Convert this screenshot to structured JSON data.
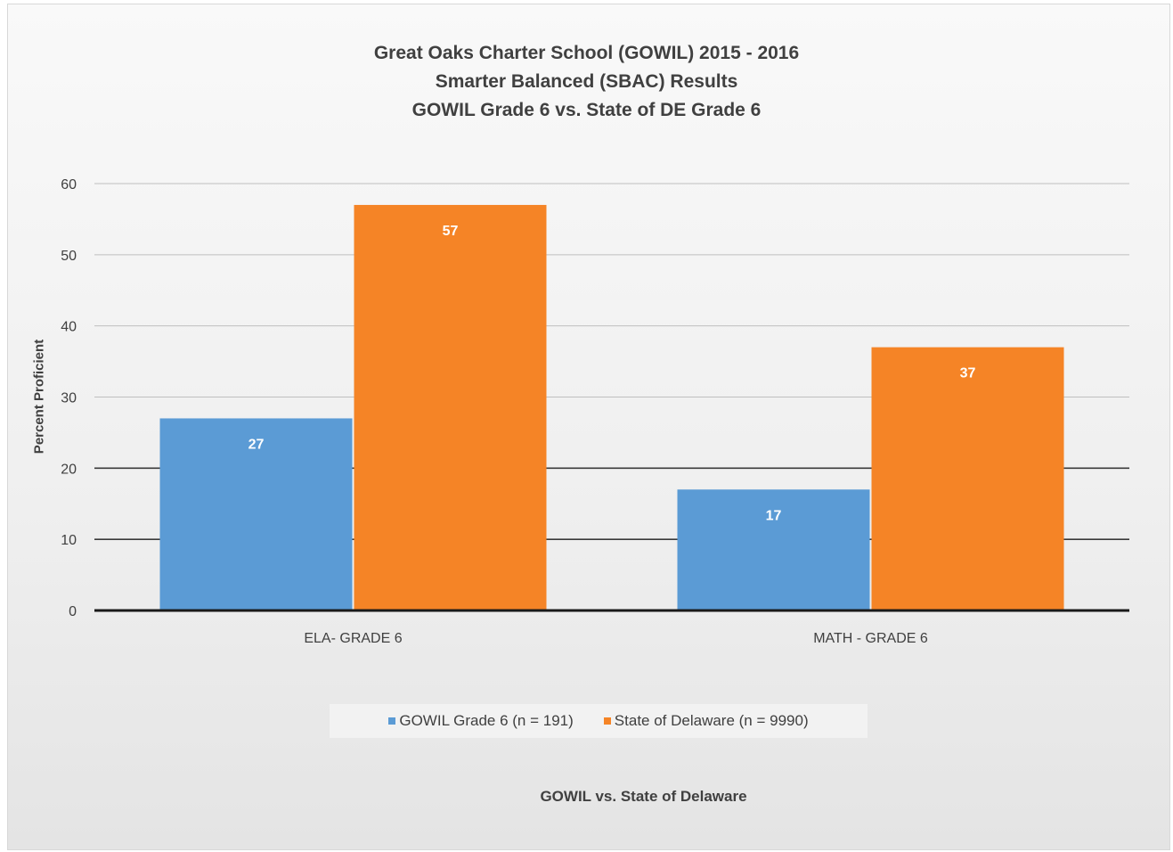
{
  "chart_data": {
    "type": "bar",
    "title_lines": [
      "Great Oaks Charter School (GOWIL) 2015 - 2016",
      "Smarter Balanced (SBAC) Results",
      "GOWIL Grade 6 vs. State of DE Grade 6"
    ],
    "categories": [
      "ELA- GRADE 6",
      "MATH - GRADE 6"
    ],
    "series": [
      {
        "name": "GOWIL Grade 6 (n = 191)",
        "values": [
          27,
          17
        ],
        "color": "#5b9bd5"
      },
      {
        "name": "State of Delaware (n = 9990)",
        "values": [
          57,
          37
        ],
        "color": "#f58426"
      }
    ],
    "xlabel": "GOWIL vs. State of Delaware",
    "ylabel": "Percent Proficient",
    "ylim": [
      0,
      60
    ],
    "yticks": [
      0,
      10,
      20,
      30,
      40,
      50,
      60
    ],
    "grid": true,
    "legend_position": "bottom",
    "data_labels": true
  }
}
